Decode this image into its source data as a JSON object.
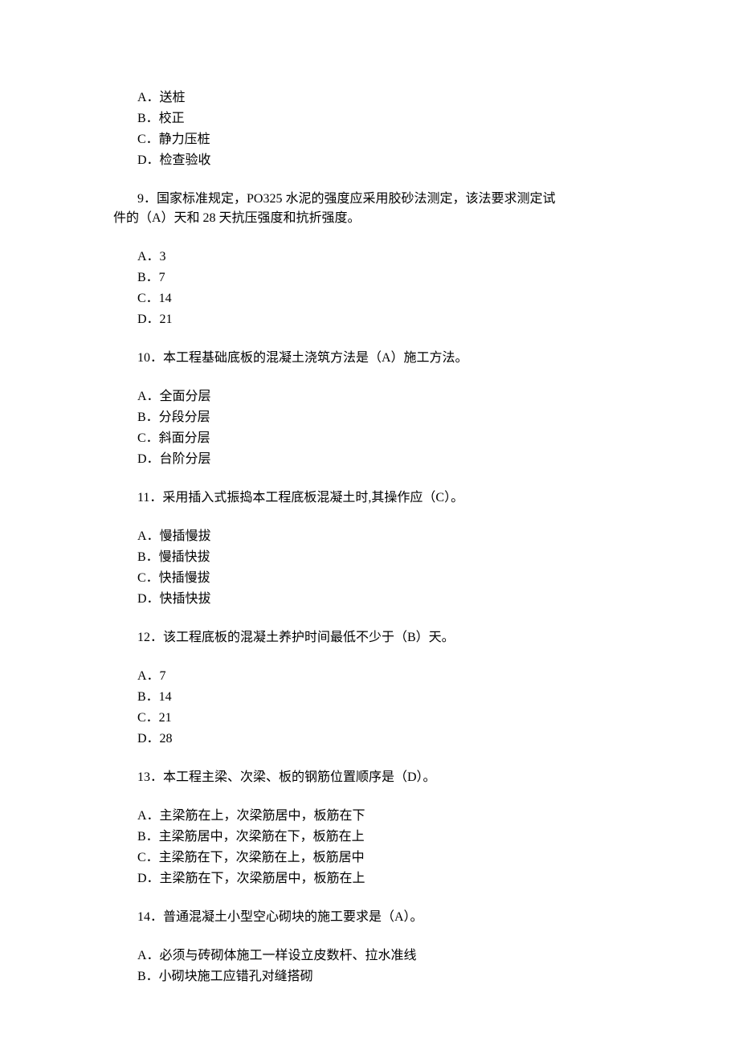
{
  "q8_options": {
    "a": "A．送桩",
    "b": "B．校正",
    "c": "C．静力压桩",
    "d": "D．检查验收"
  },
  "q9": {
    "line1": "9．国家标准规定，PO325 水泥的强度应采用胶砂法测定，该法要求测定试",
    "line2": "件的（A）天和 28 天抗压强度和抗折强度。",
    "options": {
      "a": "A．3",
      "b": "B．7",
      "c": "C．14",
      "d": "D．21"
    }
  },
  "q10": {
    "text": "10．本工程基础底板的混凝土浇筑方法是（A）施工方法。",
    "options": {
      "a": "A．全面分层",
      "b": "B．分段分层",
      "c": "C．斜面分层",
      "d": "D．台阶分层"
    }
  },
  "q11": {
    "text": "11．采用插入式振捣本工程底板混凝土时,其操作应（C）。",
    "options": {
      "a": "A．慢插慢拔",
      "b": "B．慢插快拔",
      "c": "C．快插慢拔",
      "d": "D．快插快拔"
    }
  },
  "q12": {
    "text": "12．该工程底板的混凝土养护时间最低不少于（B）天。",
    "options": {
      "a": "A．7",
      "b": "B．14",
      "c": "C．21",
      "d": "D．28"
    }
  },
  "q13": {
    "text": "13．本工程主梁、次梁、板的钢筋位置顺序是（D）。",
    "options": {
      "a": "A．主梁筋在上，次梁筋居中，板筋在下",
      "b": "B．主梁筋居中，次梁筋在下，板筋在上",
      "c": "C．主梁筋在下，次梁筋在上，板筋居中",
      "d": "D．主梁筋在下，次梁筋居中，板筋在上"
    }
  },
  "q14": {
    "text": "14．普通混凝土小型空心砌块的施工要求是（A）。",
    "options": {
      "a": "A．必须与砖砌体施工一样设立皮数杆、拉水准线",
      "b": "B．小砌块施工应错孔对缝搭砌"
    }
  }
}
